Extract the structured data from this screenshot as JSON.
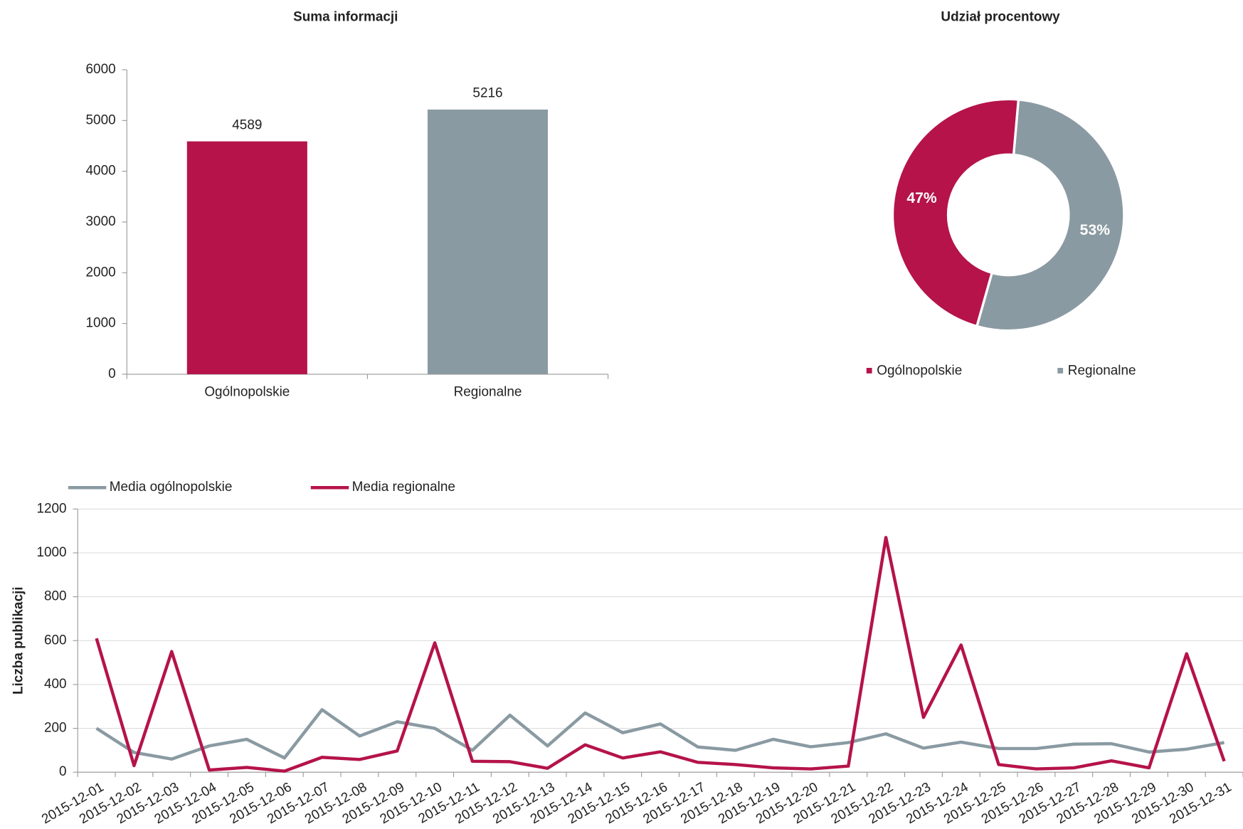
{
  "chart_data": [
    {
      "type": "bar",
      "title": "Suma informacji",
      "categories": [
        "Ogólnopolskie",
        "Regionalne"
      ],
      "values": [
        4589,
        5216
      ],
      "colors": [
        "#b5134a",
        "#8a9aa2"
      ],
      "ylim": [
        0,
        6000
      ],
      "yticks": [
        0,
        1000,
        2000,
        3000,
        4000,
        5000,
        6000
      ],
      "grid": false
    },
    {
      "type": "pie",
      "title": "Udział procentowy",
      "categories": [
        "Ogólnopolskie",
        "Regionalne"
      ],
      "values": [
        47,
        53
      ],
      "value_labels": [
        "47%",
        "53%"
      ],
      "colors": [
        "#b5134a",
        "#8a9aa2"
      ],
      "donut": true,
      "legend": "bottom"
    },
    {
      "type": "line",
      "ylabel": "Liczba publikacji",
      "categories": [
        "2015-12-01",
        "2015-12-02",
        "2015-12-03",
        "2015-12-04",
        "2015-12-05",
        "2015-12-06",
        "2015-12-07",
        "2015-12-08",
        "2015-12-09",
        "2015-12-10",
        "2015-12-11",
        "2015-12-12",
        "2015-12-13",
        "2015-12-14",
        "2015-12-15",
        "2015-12-16",
        "2015-12-17",
        "2015-12-18",
        "2015-12-19",
        "2015-12-20",
        "2015-12-21",
        "2015-12-22",
        "2015-12-23",
        "2015-12-24",
        "2015-12-25",
        "2015-12-26",
        "2015-12-27",
        "2015-12-28",
        "2015-12-29",
        "2015-12-30",
        "2015-12-31"
      ],
      "series": [
        {
          "name": "Media ogólnopolskie",
          "color": "#8a9aa2",
          "values": [
            200,
            90,
            60,
            120,
            150,
            65,
            285,
            165,
            230,
            200,
            100,
            260,
            120,
            270,
            180,
            220,
            115,
            100,
            150,
            116,
            135,
            175,
            110,
            137,
            108,
            108,
            128,
            130,
            92,
            105,
            135
          ]
        },
        {
          "name": "Media regionalne",
          "color": "#b5134a",
          "values": [
            610,
            30,
            550,
            10,
            22,
            5,
            68,
            58,
            97,
            590,
            50,
            48,
            18,
            125,
            65,
            93,
            45,
            35,
            20,
            15,
            28,
            1070,
            250,
            580,
            35,
            15,
            20,
            52,
            20,
            540,
            50
          ]
        }
      ],
      "ylim": [
        0,
        1200
      ],
      "yticks": [
        0,
        200,
        400,
        600,
        800,
        1000,
        1200
      ],
      "grid": true,
      "legend": "top"
    }
  ]
}
